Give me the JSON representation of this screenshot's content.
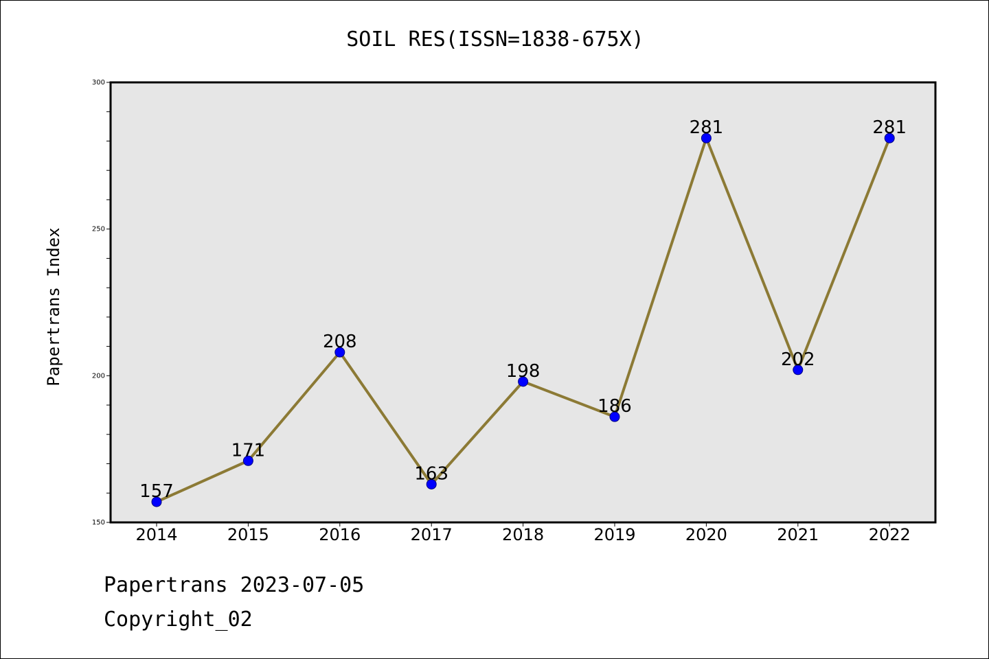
{
  "colors": {
    "plot_background": "#e6e6e6",
    "line": "#8c7a35",
    "marker_fill": "#0000ff",
    "marker_edge": "#000080"
  },
  "chart_data": {
    "type": "line",
    "title": "SOIL RES(ISSN=1838-675X)",
    "xlabel": "",
    "ylabel": "Papertrans Index",
    "categories": [
      "2014",
      "2015",
      "2016",
      "2017",
      "2018",
      "2019",
      "2020",
      "2021",
      "2022"
    ],
    "series": [
      {
        "values": [
          157,
          171,
          208,
          163,
          198,
          186,
          281,
          202,
          281
        ]
      }
    ],
    "data_labels": [
      "157",
      "171",
      "208",
      "163",
      "198",
      "186",
      "281",
      "202",
      "281"
    ],
    "ylim": [
      150,
      300
    ],
    "yticks": [
      "150",
      "200",
      "250",
      "300"
    ],
    "grid": false,
    "legend": "none"
  },
  "footer": {
    "line1": "Papertrans 2023-07-05",
    "line2": "Copyright_02"
  }
}
